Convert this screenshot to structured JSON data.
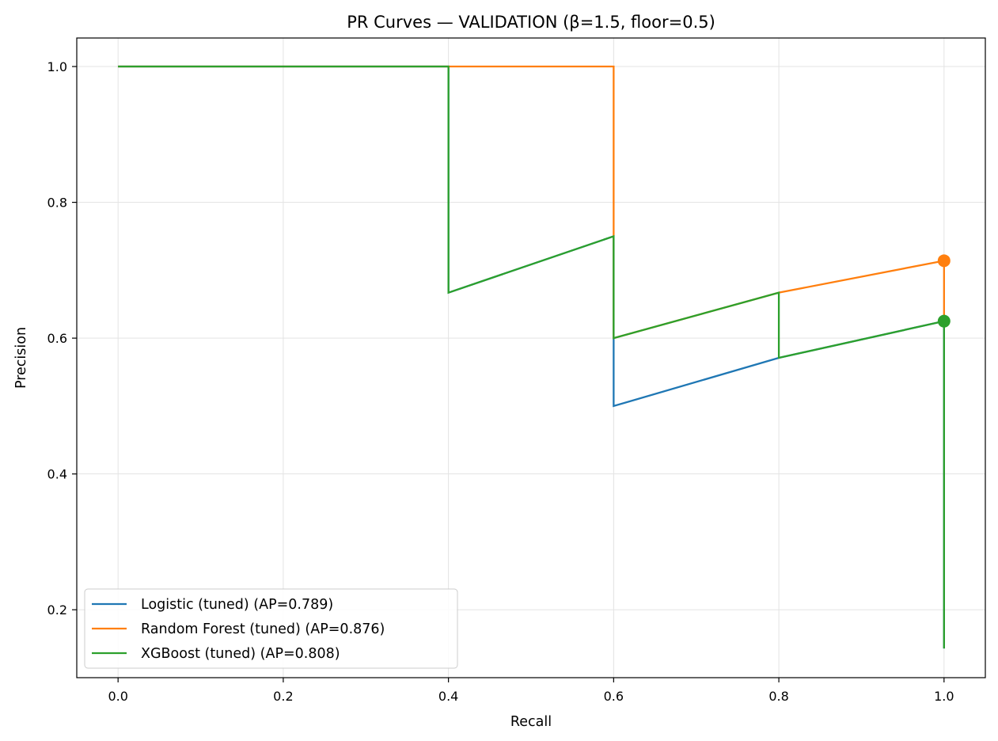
{
  "chart_data": {
    "type": "line",
    "title": "PR Curves — VALIDATION (β=1.5, floor=0.5)",
    "xlabel": "Recall",
    "ylabel": "Precision",
    "xlim": [
      -0.05,
      1.05
    ],
    "ylim": [
      0.1,
      1.042
    ],
    "x_ticks": [
      0.0,
      0.2,
      0.4,
      0.6,
      0.8,
      1.0
    ],
    "y_ticks": [
      0.2,
      0.4,
      0.6,
      0.8,
      1.0
    ],
    "x_tick_labels": [
      "0.0",
      "0.2",
      "0.4",
      "0.6",
      "0.8",
      "1.0"
    ],
    "y_tick_labels": [
      "0.2",
      "0.4",
      "0.6",
      "0.8",
      "1.0"
    ],
    "grid": true,
    "legend_position": "lower-left",
    "series": [
      {
        "name": "Logistic (tuned) (AP=0.789)",
        "color": "#1f77b4",
        "points": [
          [
            0.0,
            1.0
          ],
          [
            0.4,
            1.0
          ],
          [
            0.4,
            0.667
          ],
          [
            0.6,
            0.75
          ],
          [
            0.6,
            0.5
          ],
          [
            0.8,
            0.571
          ],
          [
            1.0,
            0.625
          ],
          [
            1.0,
            0.143
          ]
        ],
        "marker": null
      },
      {
        "name": "Random Forest (tuned) (AP=0.876)",
        "color": "#ff7f0e",
        "points": [
          [
            0.0,
            1.0
          ],
          [
            0.6,
            1.0
          ],
          [
            0.6,
            0.75
          ],
          [
            0.6,
            0.6
          ],
          [
            0.8,
            0.667
          ],
          [
            1.0,
            0.714
          ],
          [
            1.0,
            0.625
          ]
        ],
        "marker": [
          1.0,
          0.714
        ]
      },
      {
        "name": "XGBoost (tuned) (AP=0.808)",
        "color": "#2ca02c",
        "points": [
          [
            0.0,
            1.0
          ],
          [
            0.4,
            1.0
          ],
          [
            0.4,
            0.667
          ],
          [
            0.6,
            0.75
          ],
          [
            0.6,
            0.6
          ],
          [
            0.8,
            0.667
          ],
          [
            0.8,
            0.571
          ],
          [
            1.0,
            0.625
          ],
          [
            1.0,
            0.143
          ]
        ],
        "marker": [
          1.0,
          0.625
        ]
      }
    ]
  }
}
